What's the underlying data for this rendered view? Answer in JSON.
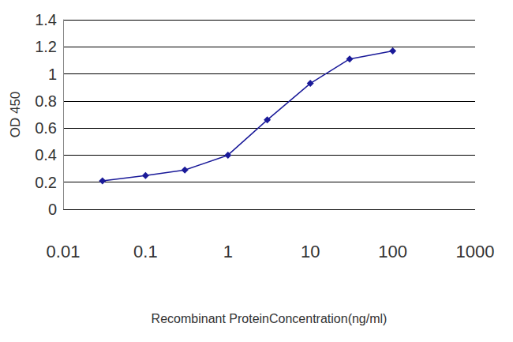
{
  "chart_data": {
    "type": "line",
    "x_label": "Recombinant ProteinConcentration(ng/ml)",
    "y_label": "OD 450",
    "x": [
      0.03,
      0.1,
      0.3,
      1,
      3,
      10,
      30,
      100
    ],
    "values": [
      0.21,
      0.25,
      0.29,
      0.4,
      0.66,
      0.93,
      1.11,
      1.17
    ],
    "color": "#1a1a99",
    "marker": "diamond",
    "log": "x",
    "xlim": [
      0.01,
      1000
    ],
    "xticks": [
      0.01,
      0.1,
      1,
      10,
      100,
      1000
    ],
    "ylim": [
      0,
      1.4
    ],
    "yticks": [
      0,
      0.2,
      0.4,
      0.6,
      0.8,
      1,
      1.2,
      1.4
    ],
    "grid": true
  }
}
